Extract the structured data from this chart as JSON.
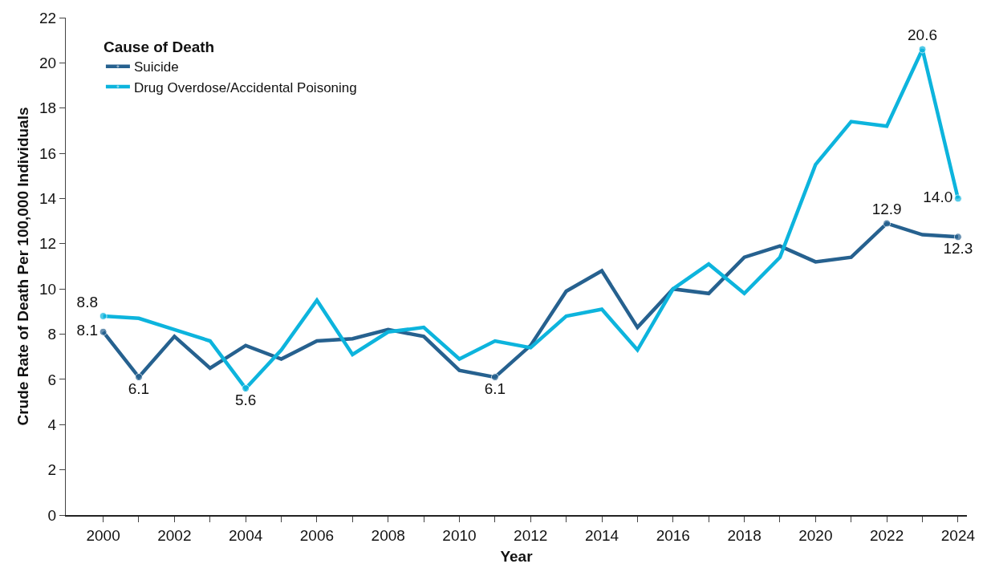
{
  "chart_data": {
    "type": "line",
    "xlabel": "Year",
    "ylabel": "Crude Rate of Death Per 100,000 Individuals",
    "legend_title": "Cause of Death",
    "x": [
      2000,
      2001,
      2002,
      2003,
      2004,
      2005,
      2006,
      2007,
      2008,
      2009,
      2010,
      2011,
      2012,
      2013,
      2014,
      2015,
      2016,
      2017,
      2018,
      2019,
      2020,
      2021,
      2022,
      2023,
      2024
    ],
    "series": [
      {
        "name": "Suicide",
        "color": "#26618f",
        "values": [
          8.1,
          6.1,
          7.9,
          6.5,
          7.5,
          6.9,
          7.7,
          7.8,
          8.2,
          7.9,
          6.4,
          6.1,
          7.5,
          9.9,
          10.8,
          8.3,
          10.0,
          9.8,
          11.4,
          11.9,
          11.2,
          11.4,
          12.9,
          12.4,
          12.3
        ],
        "value_labels": [
          "8.1",
          "6.1",
          null,
          null,
          null,
          null,
          null,
          null,
          null,
          null,
          null,
          "6.1",
          null,
          null,
          null,
          null,
          null,
          null,
          null,
          null,
          null,
          null,
          "12.9",
          null,
          "12.3"
        ]
      },
      {
        "name": "Drug Overdose/Accidental Poisoning",
        "color": "#0db4dd",
        "values": [
          8.8,
          8.7,
          8.2,
          7.7,
          5.6,
          7.3,
          9.5,
          7.1,
          8.1,
          8.3,
          6.9,
          7.7,
          7.4,
          8.8,
          9.1,
          7.3,
          10.0,
          11.1,
          9.8,
          11.4,
          15.5,
          17.4,
          17.2,
          20.6,
          14.0
        ],
        "value_labels": [
          "8.8",
          null,
          null,
          null,
          "5.6",
          null,
          null,
          null,
          null,
          null,
          null,
          null,
          null,
          null,
          null,
          null,
          null,
          null,
          null,
          null,
          null,
          null,
          null,
          "20.6",
          "14.0"
        ]
      }
    ],
    "xlim": [
      1998.95,
      2024.25
    ],
    "xticks": [
      2000,
      {
        "value": 2001,
        "label": null
      },
      2002,
      {
        "value": 2003,
        "label": null
      },
      2004,
      {
        "value": 2005,
        "label": null
      },
      2006,
      {
        "value": 2007,
        "label": null
      },
      2008,
      {
        "value": 2009,
        "label": null
      },
      2010,
      {
        "value": 2011,
        "label": null
      },
      2012,
      {
        "value": 2013,
        "label": null
      },
      2014,
      {
        "value": 2015,
        "label": null
      },
      2016,
      {
        "value": 2017,
        "label": null
      },
      2018,
      {
        "value": 2019,
        "label": null
      },
      2020,
      {
        "value": 2021,
        "label": null
      },
      2022,
      {
        "value": 2023,
        "label": null
      },
      2024
    ],
    "ylim": [
      0,
      22
    ],
    "yticks": [
      0,
      2,
      4,
      6,
      8,
      10,
      12,
      14,
      16,
      18,
      20,
      22
    ],
    "grid": false,
    "legend": "top left",
    "line_style": "solid"
  }
}
